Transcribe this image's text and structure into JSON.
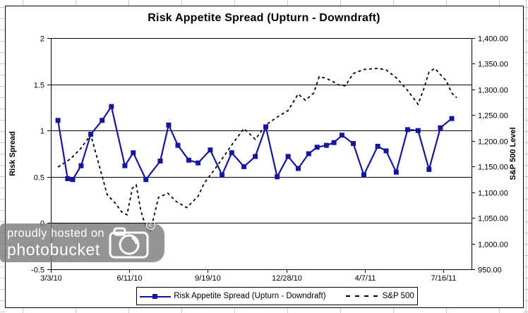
{
  "watermark": {
    "line1": "proudly hosted on",
    "line2": "photobucket",
    "registered_mark": "R"
  },
  "chart_data": {
    "type": "line",
    "title": "Risk Appetite Spread (Upturn - Downdraft)",
    "grid": "horizontal",
    "colors": {
      "spread_line": "#16169C",
      "sp500_line": "#000000",
      "grid_line": "#000000",
      "sheet_grid": "#c9c9c9"
    },
    "x_axis": {
      "tick_labels": [
        "3/3/10",
        "6/11/10",
        "9/19/10",
        "12/28/10",
        "4/7/11",
        "7/16/11"
      ],
      "tick_t": [
        0,
        0.1866,
        0.3732,
        0.5597,
        0.7463,
        0.9329
      ]
    },
    "left_axis": {
      "title": "Risk Spread",
      "min": -0.5,
      "max": 2,
      "tick_labels": [
        "2",
        "1.5",
        "1",
        "0.5",
        "0",
        "-0.5"
      ]
    },
    "right_axis": {
      "title": "S&P 500 Level",
      "min": 950,
      "max": 1400,
      "tick_labels": [
        "1,400.00",
        "1,350.00",
        "1,300.00",
        "1,250.00",
        "1,200.00",
        "1,150.00",
        "1,100.00",
        "1,050.00",
        "1,000.00",
        "950.00"
      ]
    },
    "legend": {
      "position": "bottom",
      "entries": [
        {
          "label": "Risk Appetite Spread (Upturn - Downdraft)",
          "style": "solid-line-square-marker"
        },
        {
          "label": "S&P 500",
          "style": "dashed-line"
        }
      ]
    },
    "series": [
      {
        "name": "Risk Appetite Spread (Upturn - Downdraft)",
        "axis": "left",
        "line": "solid",
        "marker": "square",
        "points": [
          [
            0.017,
            1.11
          ],
          [
            0.04,
            0.48
          ],
          [
            0.052,
            0.47
          ],
          [
            0.072,
            0.62
          ],
          [
            0.095,
            0.96
          ],
          [
            0.122,
            1.11
          ],
          [
            0.144,
            1.26
          ],
          [
            0.176,
            0.62
          ],
          [
            0.196,
            0.76
          ],
          [
            0.226,
            0.47
          ],
          [
            0.26,
            0.67
          ],
          [
            0.28,
            1.06
          ],
          [
            0.302,
            0.84
          ],
          [
            0.328,
            0.68
          ],
          [
            0.35,
            0.65
          ],
          [
            0.379,
            0.79
          ],
          [
            0.407,
            0.52
          ],
          [
            0.43,
            0.76
          ],
          [
            0.459,
            0.61
          ],
          [
            0.486,
            0.72
          ],
          [
            0.511,
            1.04
          ],
          [
            0.538,
            0.5
          ],
          [
            0.564,
            0.72
          ],
          [
            0.588,
            0.59
          ],
          [
            0.613,
            0.75
          ],
          [
            0.633,
            0.82
          ],
          [
            0.655,
            0.84
          ],
          [
            0.673,
            0.87
          ],
          [
            0.692,
            0.95
          ],
          [
            0.719,
            0.86
          ],
          [
            0.744,
            0.52
          ],
          [
            0.777,
            0.83
          ],
          [
            0.797,
            0.78
          ],
          [
            0.821,
            0.55
          ],
          [
            0.848,
            1.01
          ],
          [
            0.873,
            1.0
          ],
          [
            0.899,
            0.58
          ],
          [
            0.926,
            1.03
          ],
          [
            0.953,
            1.13
          ]
        ]
      },
      {
        "name": "S&P 500",
        "axis": "right",
        "line": "dashed",
        "marker": "none",
        "points": [
          [
            0.017,
            1149
          ],
          [
            0.047,
            1165
          ],
          [
            0.072,
            1186
          ],
          [
            0.095,
            1212
          ],
          [
            0.114,
            1155
          ],
          [
            0.134,
            1095
          ],
          [
            0.154,
            1078
          ],
          [
            0.168,
            1062
          ],
          [
            0.181,
            1056
          ],
          [
            0.194,
            1108
          ],
          [
            0.203,
            1114
          ],
          [
            0.214,
            1064
          ],
          [
            0.226,
            1032
          ],
          [
            0.236,
            1022
          ],
          [
            0.256,
            1090
          ],
          [
            0.278,
            1098
          ],
          [
            0.298,
            1082
          ],
          [
            0.323,
            1070
          ],
          [
            0.35,
            1092
          ],
          [
            0.365,
            1118
          ],
          [
            0.39,
            1145
          ],
          [
            0.407,
            1165
          ],
          [
            0.43,
            1192
          ],
          [
            0.459,
            1224
          ],
          [
            0.486,
            1203
          ],
          [
            0.511,
            1231
          ],
          [
            0.538,
            1246
          ],
          [
            0.564,
            1259
          ],
          [
            0.588,
            1291
          ],
          [
            0.605,
            1279
          ],
          [
            0.625,
            1293
          ],
          [
            0.638,
            1325
          ],
          [
            0.653,
            1322
          ],
          [
            0.667,
            1317
          ],
          [
            0.683,
            1309
          ],
          [
            0.7,
            1307
          ],
          [
            0.719,
            1331
          ],
          [
            0.744,
            1339
          ],
          [
            0.777,
            1341
          ],
          [
            0.797,
            1338
          ],
          [
            0.821,
            1323
          ],
          [
            0.848,
            1298
          ],
          [
            0.873,
            1271
          ],
          [
            0.886,
            1300
          ],
          [
            0.899,
            1334
          ],
          [
            0.913,
            1341
          ],
          [
            0.926,
            1329
          ],
          [
            0.94,
            1317
          ],
          [
            0.953,
            1293
          ],
          [
            0.965,
            1284
          ]
        ]
      }
    ]
  }
}
